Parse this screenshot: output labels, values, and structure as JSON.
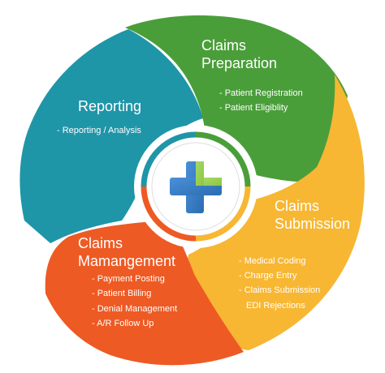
{
  "colors": {
    "preparation": "#4a9e3a",
    "submission": "#f7b733",
    "management": "#ee5a24",
    "reporting": "#1f95a8",
    "center_ring_green": "#4a9e3a",
    "center_ring_yellow": "#f7b733",
    "center_ring_orange": "#ee5a24",
    "center_ring_teal": "#1f95a8",
    "logo_green": "#8cc63f",
    "logo_blue": "#2b6cb0"
  },
  "center": {
    "icon": "medical-cross-icon"
  },
  "segments": {
    "preparation": {
      "title_line1": "Claims",
      "title_line2": "Preparation",
      "items": [
        "- Patient Registration",
        "- Patient Eligiblity"
      ]
    },
    "submission": {
      "title_line1": "Claims",
      "title_line2": "Submission",
      "items": [
        "- Medical Coding",
        "- Charge Entry",
        "- Claims Submission",
        "EDI Rejections"
      ]
    },
    "management": {
      "title_line1": "Claims",
      "title_line2": "Mamangement",
      "items": [
        "- Payment Posting",
        "- Patient Billing",
        "- Denial Management",
        "- A/R Follow Up"
      ]
    },
    "reporting": {
      "title_line1": "Reporting",
      "items": [
        "- Reporting / Analysis"
      ]
    }
  }
}
